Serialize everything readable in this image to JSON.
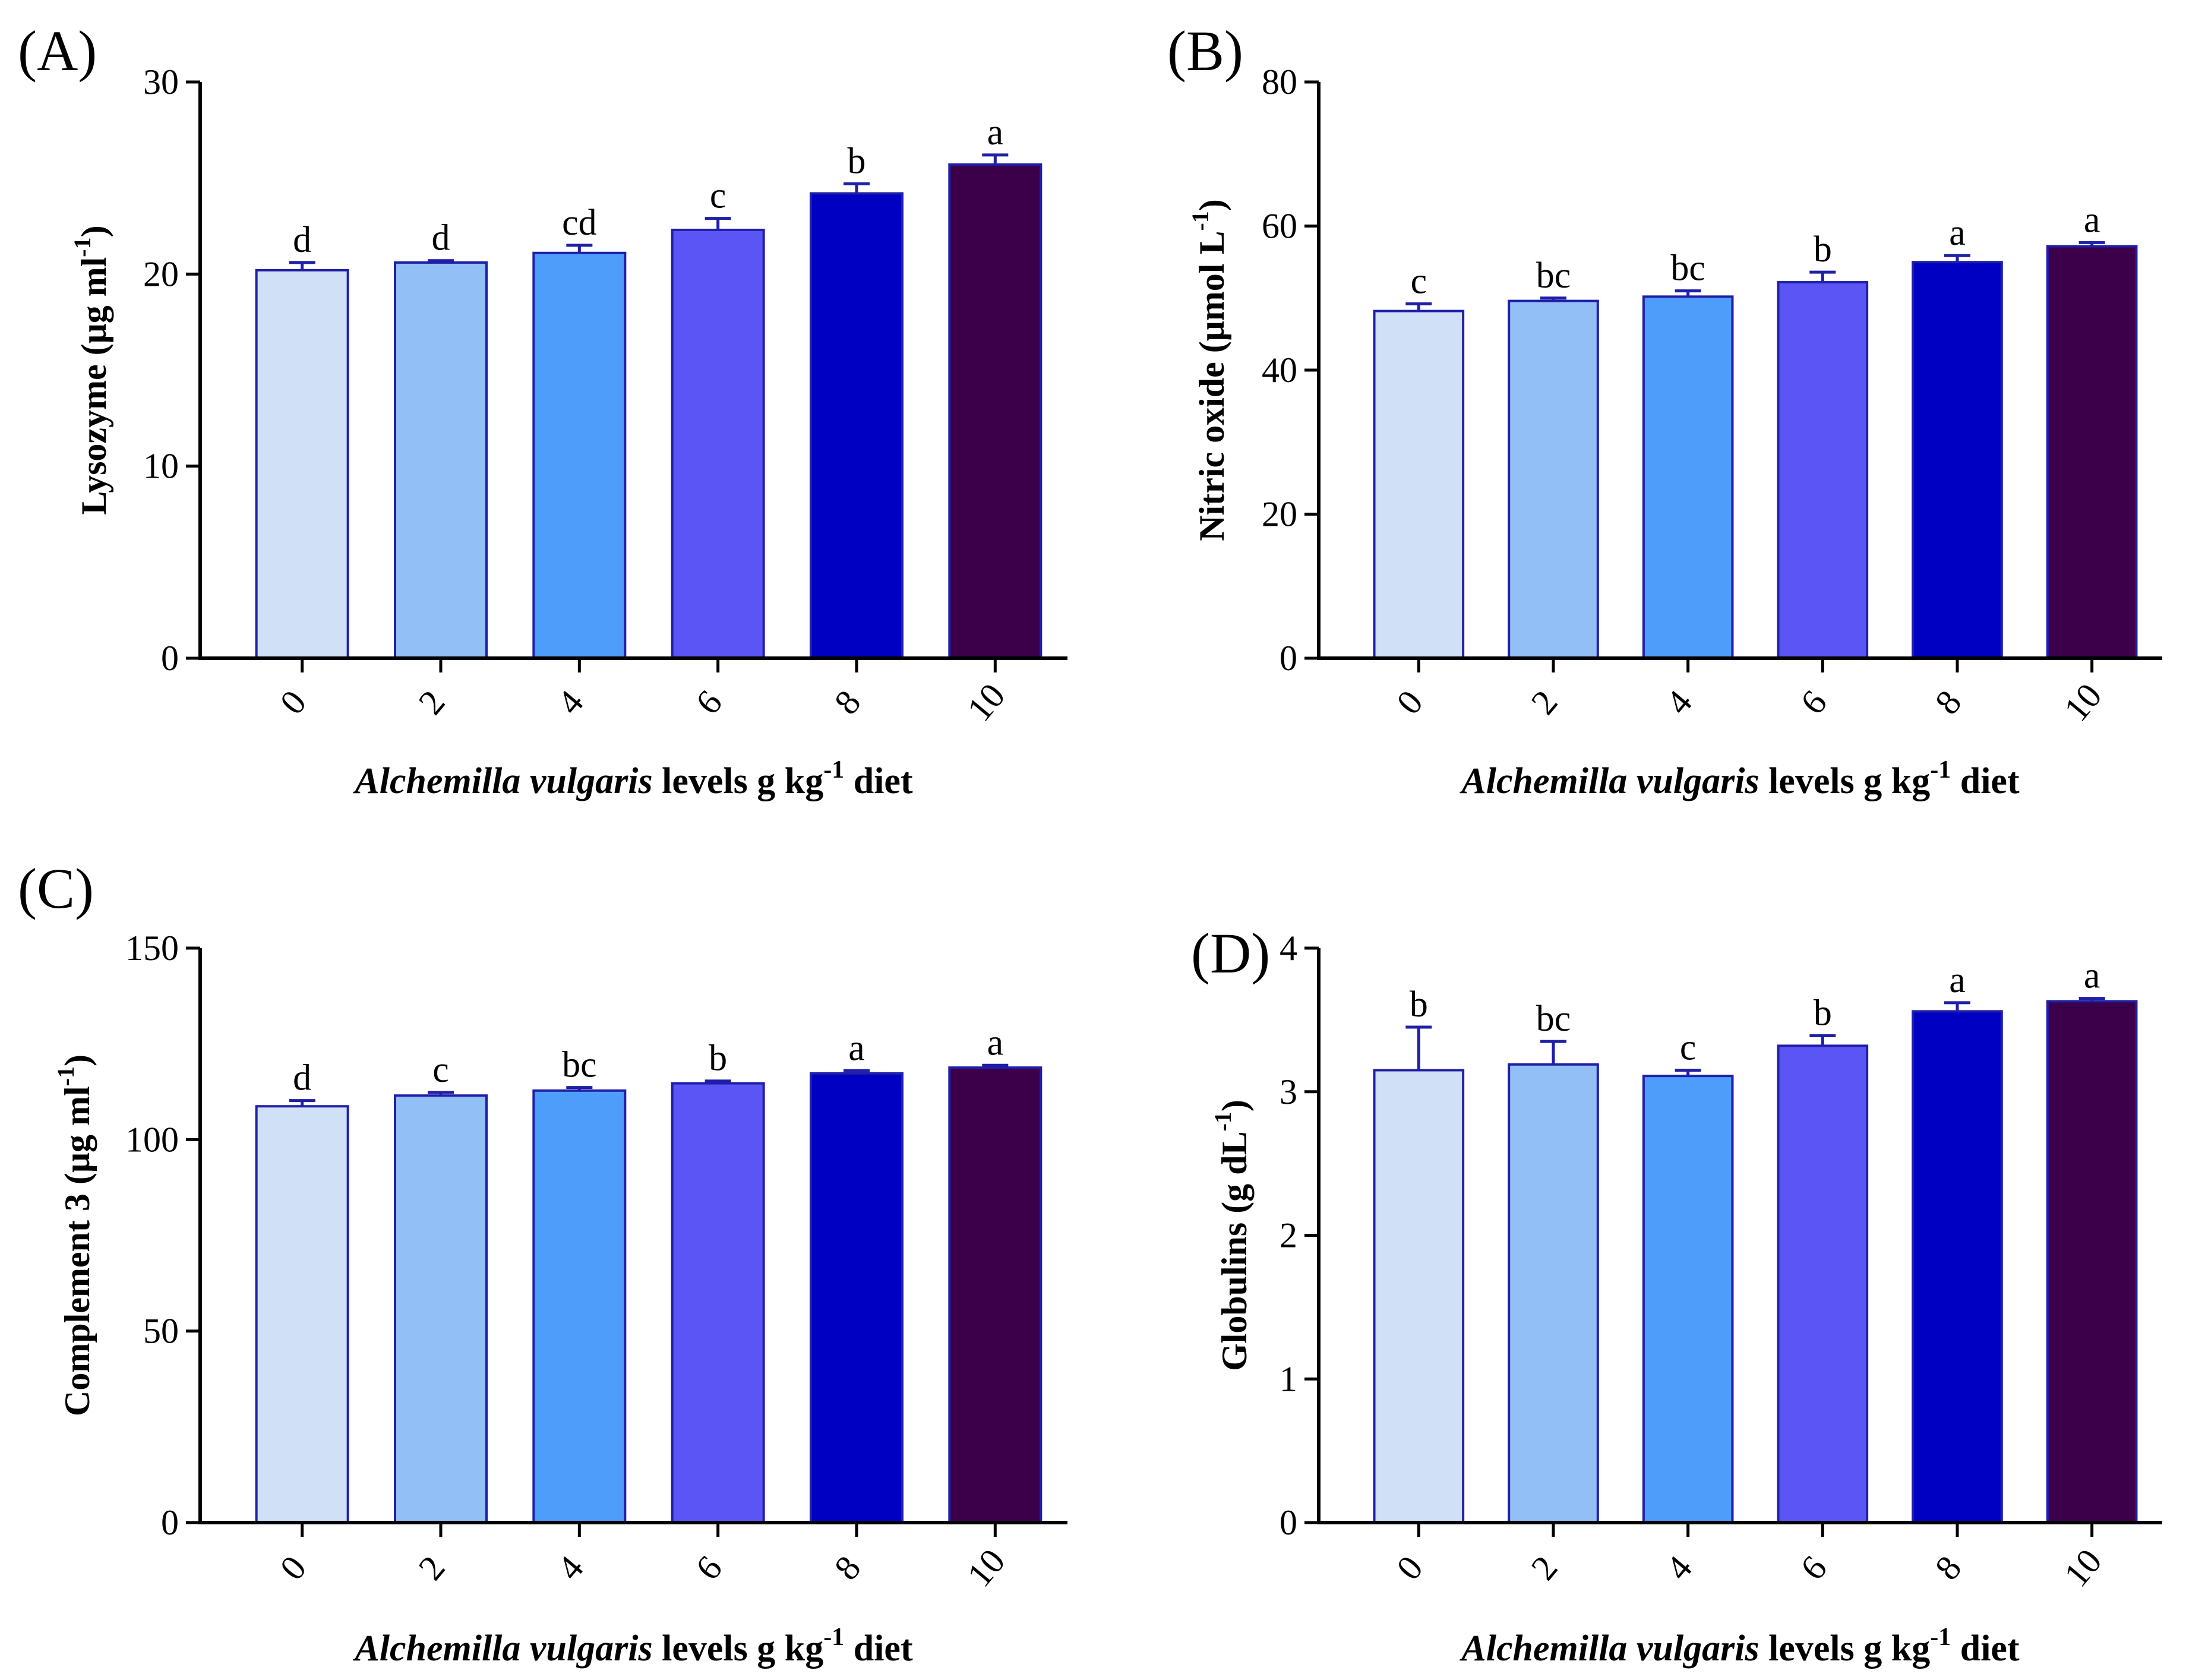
{
  "colors": [
    "#cfe0f7",
    "#93bff7",
    "#4f9dfb",
    "#5b55f6",
    "#0000c3",
    "#3c004b"
  ],
  "chart_data": [
    {
      "id": "A",
      "type": "bar",
      "panel_label": "(A)",
      "categories": [
        "0",
        "2",
        "4",
        "6",
        "8",
        "10"
      ],
      "values": [
        20.2,
        20.6,
        21.1,
        22.3,
        24.2,
        25.7
      ],
      "errors": [
        0.4,
        0.1,
        0.4,
        0.6,
        0.5,
        0.5
      ],
      "letters": [
        "d",
        "d",
        "cd",
        "c",
        "b",
        "a"
      ],
      "ylabel": "Lysozyme (μg ml",
      "ylabel_sup": "-1",
      "ylabel_end": ")",
      "xlabel_italic": "Alchemilla vulgaris",
      "xlabel_rest": " levels g kg",
      "xlabel_sup": "-1",
      "xlabel_end": " diet",
      "ylim": [
        0,
        30
      ],
      "yticks": [
        0,
        10,
        20,
        30
      ]
    },
    {
      "id": "B",
      "type": "bar",
      "panel_label": "(B)",
      "categories": [
        "0",
        "2",
        "4",
        "6",
        "8",
        "10"
      ],
      "values": [
        48.2,
        49.6,
        50.2,
        52.2,
        55.0,
        57.2
      ],
      "errors": [
        1.0,
        0.4,
        0.8,
        1.4,
        0.9,
        0.5
      ],
      "letters": [
        "c",
        "bc",
        "bc",
        "b",
        "a",
        "a"
      ],
      "ylabel": "Nitric oxide (μmol L",
      "ylabel_sup": "-1",
      "ylabel_end": ")",
      "xlabel_italic": "Alchemilla vulgaris",
      "xlabel_rest": " levels g kg",
      "xlabel_sup": "-1",
      "xlabel_end": " diet",
      "ylim": [
        0,
        80
      ],
      "yticks": [
        0,
        20,
        40,
        60,
        80
      ]
    },
    {
      "id": "C",
      "type": "bar",
      "panel_label": "(C)",
      "categories": [
        "0",
        "2",
        "4",
        "6",
        "8",
        "10"
      ],
      "values": [
        108.7,
        111.5,
        112.8,
        114.7,
        117.3,
        118.8
      ],
      "errors": [
        1.5,
        0.8,
        0.8,
        0.6,
        0.7,
        0.6
      ],
      "letters": [
        "d",
        "c",
        "bc",
        "b",
        "a",
        "a"
      ],
      "ylabel": "Complement 3 (μg ml",
      "ylabel_sup": "-1",
      "ylabel_end": ")",
      "xlabel_italic": "Alchemilla vulgaris",
      "xlabel_rest": " levels g kg",
      "xlabel_sup": "-1",
      "xlabel_end": " diet",
      "ylim": [
        0,
        150
      ],
      "yticks": [
        0,
        50,
        100,
        150
      ]
    },
    {
      "id": "D",
      "type": "bar",
      "panel_label": "(D)",
      "categories": [
        "0",
        "2",
        "4",
        "6",
        "8",
        "10"
      ],
      "values": [
        3.15,
        3.19,
        3.11,
        3.32,
        3.56,
        3.63
      ],
      "errors": [
        0.3,
        0.16,
        0.04,
        0.07,
        0.06,
        0.02
      ],
      "letters": [
        "b",
        "bc",
        "c",
        "b",
        "a",
        "a"
      ],
      "ylabel": "Globulins (g dL",
      "ylabel_sup": "-1",
      "ylabel_end": ")",
      "xlabel_italic": "Alchemilla vulgaris",
      "xlabel_rest": " levels g kg",
      "xlabel_sup": "-1",
      "xlabel_end": " diet",
      "ylim": [
        0,
        4
      ],
      "yticks": [
        0,
        1,
        2,
        3,
        4
      ]
    }
  ]
}
